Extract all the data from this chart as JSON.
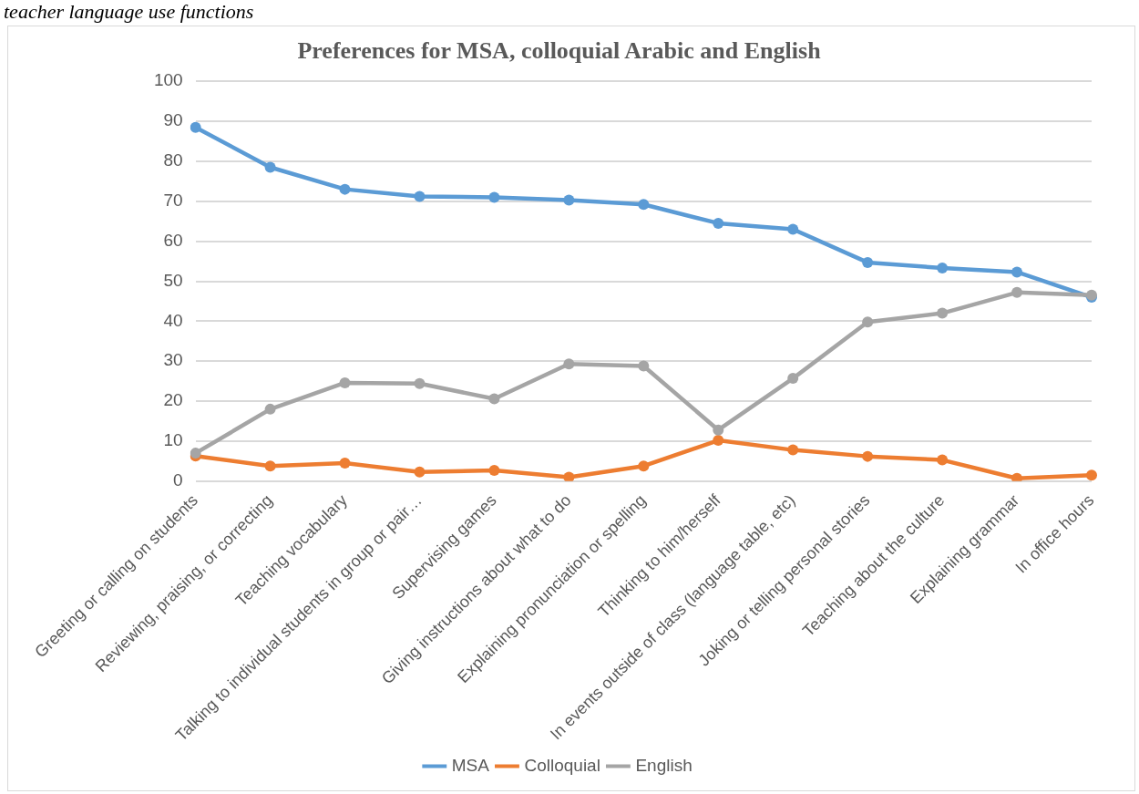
{
  "chart_data": {
    "type": "line",
    "title": "Preferences for MSA, colloquial Arabic and English",
    "annotations": [
      "teacher language use functions"
    ],
    "categories": [
      "Greeting or calling on students",
      "Reviewing, praising, or correcting",
      "Teaching vocabulary",
      "Talking to individual students in group or pair…",
      "Supervising games",
      "Giving instructions about what to do",
      "Explaining pronunciation or spelling",
      "Thinking to him/herself",
      "In events outside of class (language table, etc)",
      "Joking or telling personal stories",
      "Teaching about the culture",
      "Explaining grammar",
      "In office hours"
    ],
    "series": [
      {
        "name": "MSA",
        "color": "#5b9bd5",
        "values": [
          88.5,
          78.5,
          73,
          71.2,
          71,
          70.3,
          69.2,
          64.5,
          63,
          54.7,
          53.3,
          52.3,
          46
        ]
      },
      {
        "name": "Colloquial",
        "color": "#ed7d31",
        "values": [
          6.3,
          3.8,
          4.5,
          2.3,
          2.7,
          1,
          3.8,
          10.2,
          7.8,
          6.2,
          5.3,
          0.7,
          1.5
        ]
      },
      {
        "name": "English",
        "color": "#a5a5a5",
        "values": [
          7,
          18,
          24.6,
          24.4,
          20.6,
          29.3,
          28.8,
          12.8,
          25.7,
          39.8,
          42,
          47.2,
          46.5
        ]
      }
    ],
    "ylim": [
      0,
      100
    ],
    "yticks": [
      0,
      10,
      20,
      30,
      40,
      50,
      60,
      70,
      80,
      90,
      100
    ],
    "grid": "y",
    "legend": "bottom",
    "marker": "circle",
    "line_style": "solid"
  }
}
